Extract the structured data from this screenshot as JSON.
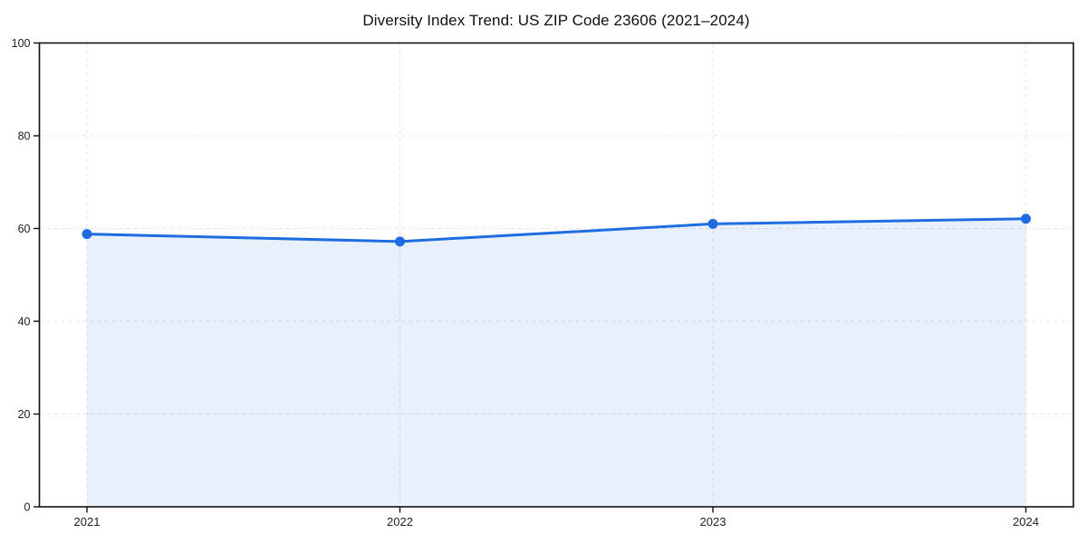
{
  "page": {
    "background_color": "#ffffff"
  },
  "chart_data": {
    "type": "line",
    "title": "Diversity Index Trend: US ZIP Code 23606 (2021–2024)",
    "categories": [
      "2021",
      "2022",
      "2023",
      "2024"
    ],
    "series": [
      {
        "name": "Diversity Index",
        "values": [
          58.8,
          57.2,
          61.0,
          62.1
        ]
      }
    ],
    "xlabel": "",
    "ylabel": "",
    "ylim": [
      0,
      100
    ],
    "yticks": [
      0,
      20,
      40,
      60,
      80,
      100
    ],
    "grid": "dashed both axes",
    "legend": "none",
    "area_fill": true,
    "style": {
      "line_color": "#1f6ce0",
      "marker_color": "#1f6ce0",
      "fill_color": "#1f6ce0",
      "fill_opacity": 0.1,
      "grid_color": "#e4e4e4",
      "spine_color": "#111111",
      "line_width": 3,
      "marker_radius": 5.5
    }
  }
}
